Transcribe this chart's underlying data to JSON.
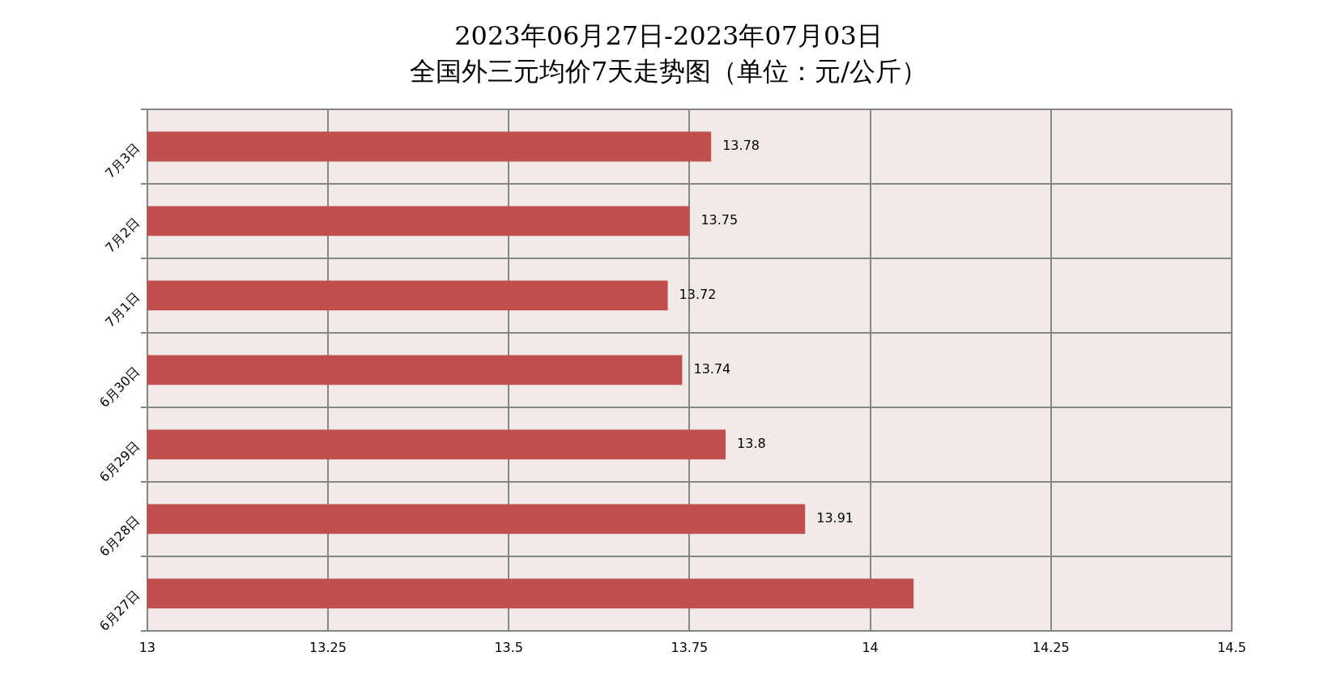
{
  "chart_data": {
    "type": "bar",
    "orientation": "horizontal",
    "title": "2023年06月27日-2023年07月03日",
    "subtitle": "全国外三元均价7天走势图（单位：元/公斤）",
    "categories": [
      "7月3日",
      "7月2日",
      "7月1日",
      "6月30日",
      "6月29日",
      "6月28日",
      "6月27日"
    ],
    "values": [
      13.78,
      13.75,
      13.72,
      13.74,
      13.8,
      13.91,
      14.06
    ],
    "value_labels": [
      "13.78",
      "13.75",
      "13.72",
      "13.74",
      "13.8",
      "13.91",
      null
    ],
    "color": "#c0504d",
    "xlim": [
      13,
      14.5
    ],
    "xticks": [
      13,
      13.25,
      13.5,
      13.75,
      14,
      14.25,
      14.5
    ],
    "grid": true,
    "legend": false
  }
}
